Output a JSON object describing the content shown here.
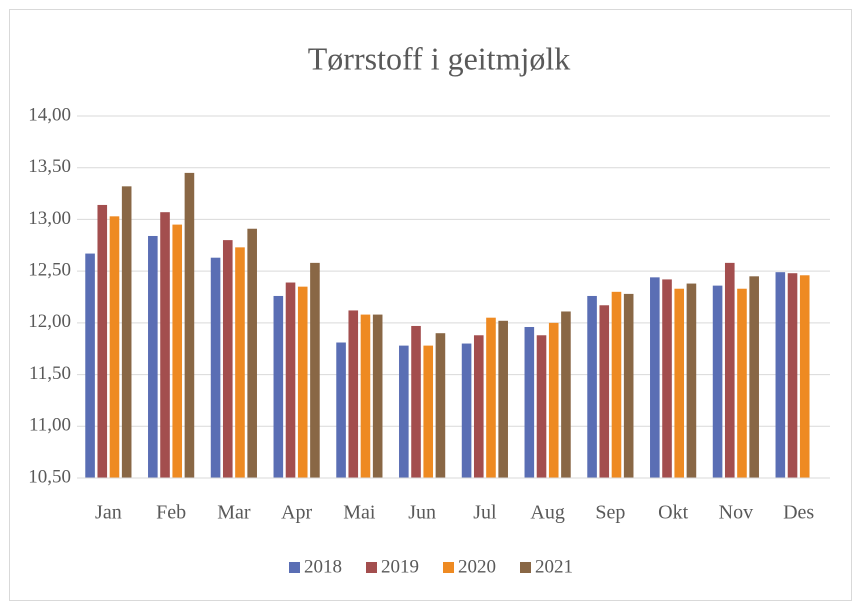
{
  "chart_data": {
    "type": "bar",
    "title": "Tørrstoff i geitmjølk",
    "categories": [
      "Jan",
      "Feb",
      "Mar",
      "Apr",
      "Mai",
      "Jun",
      "Jul",
      "Aug",
      "Sep",
      "Okt",
      "Nov",
      "Des"
    ],
    "series": [
      {
        "name": "2018",
        "color": "#5A6EB4",
        "values": [
          12.67,
          12.84,
          12.63,
          12.26,
          11.81,
          11.78,
          11.8,
          11.96,
          12.26,
          12.44,
          12.36,
          12.49
        ]
      },
      {
        "name": "2019",
        "color": "#A34E4E",
        "values": [
          13.14,
          13.07,
          12.8,
          12.39,
          12.12,
          11.97,
          11.88,
          11.88,
          12.17,
          12.42,
          12.58,
          12.48
        ]
      },
      {
        "name": "2020",
        "color": "#EE8A22",
        "values": [
          13.03,
          12.95,
          12.73,
          12.35,
          12.08,
          11.78,
          12.05,
          12.0,
          12.3,
          12.33,
          12.33,
          12.46
        ]
      },
      {
        "name": "2021",
        "color": "#896745",
        "values": [
          13.32,
          13.45,
          12.91,
          12.58,
          12.08,
          11.9,
          12.02,
          12.11,
          12.28,
          12.38,
          12.45,
          null
        ]
      }
    ],
    "ylim": [
      10.5,
      14.0
    ],
    "yticks": [
      {
        "value": 10.5,
        "label": "10,50"
      },
      {
        "value": 11.0,
        "label": "11,00"
      },
      {
        "value": 11.5,
        "label": "11,50"
      },
      {
        "value": 12.0,
        "label": "12,00"
      },
      {
        "value": 12.5,
        "label": "12,50"
      },
      {
        "value": 13.0,
        "label": "13,00"
      },
      {
        "value": 13.5,
        "label": "13,50"
      },
      {
        "value": 14.0,
        "label": "14,00"
      }
    ],
    "grid": true,
    "legend": "bottom"
  }
}
